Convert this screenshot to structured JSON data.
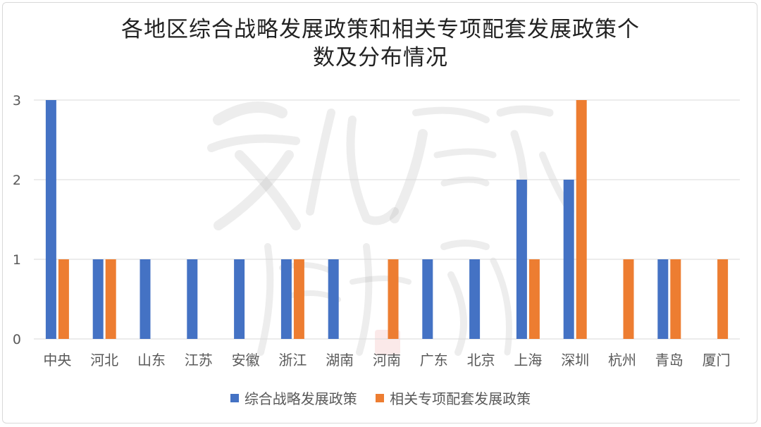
{
  "chart_data": {
    "type": "bar",
    "title_lines": [
      "各地区综合战略发展政策和相关专项配套发展政策个",
      "数及分布情况"
    ],
    "categories": [
      "中央",
      "河北",
      "山东",
      "江苏",
      "安徽",
      "浙江",
      "湖南",
      "河南",
      "广东",
      "北京",
      "上海",
      "深圳",
      "杭州",
      "青岛",
      "厦门"
    ],
    "series": [
      {
        "name": "综合战略发展政策",
        "color": "#4472c4",
        "values": [
          3,
          1,
          1,
          1,
          1,
          1,
          1,
          0,
          1,
          1,
          2,
          2,
          0,
          1,
          0
        ]
      },
      {
        "name": "相关专项配套发展政策",
        "color": "#ed7d31",
        "values": [
          1,
          1,
          0,
          0,
          0,
          1,
          0,
          1,
          0,
          0,
          1,
          3,
          1,
          1,
          1
        ]
      }
    ],
    "yticks": [
      0,
      1,
      2,
      3
    ],
    "ylim": [
      0,
      3
    ],
    "grid": true,
    "legend_position": "bottom"
  },
  "watermark": {
    "text": "文化产业评论"
  }
}
